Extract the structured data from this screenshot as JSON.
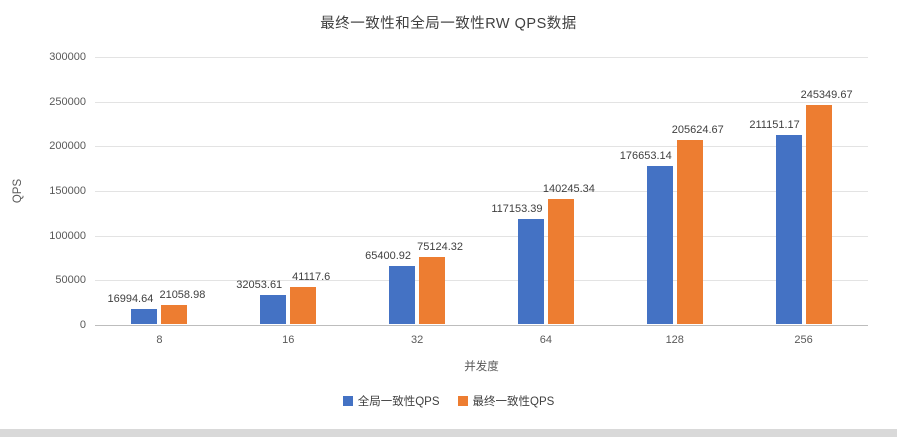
{
  "chart_data": {
    "type": "bar",
    "title": "最终一致性和全局一致性RW QPS数据",
    "xlabel": "并发度",
    "ylabel": "QPS",
    "categories": [
      "8",
      "16",
      "32",
      "64",
      "128",
      "256"
    ],
    "series": [
      {
        "name": "全局一致性QPS",
        "color": "#4472C4",
        "values": [
          16994.64,
          32053.61,
          65400.92,
          117153.39,
          176653.14,
          211151.17
        ]
      },
      {
        "name": "最终一致性QPS",
        "color": "#ED7D31",
        "values": [
          21058.98,
          41117.6,
          75124.32,
          140245.34,
          205624.67,
          245349.67
        ]
      }
    ],
    "ylim": [
      0,
      300000
    ],
    "yticks": [
      0,
      50000,
      100000,
      150000,
      200000,
      250000,
      300000
    ],
    "grid": true,
    "legend_position": "bottom"
  }
}
